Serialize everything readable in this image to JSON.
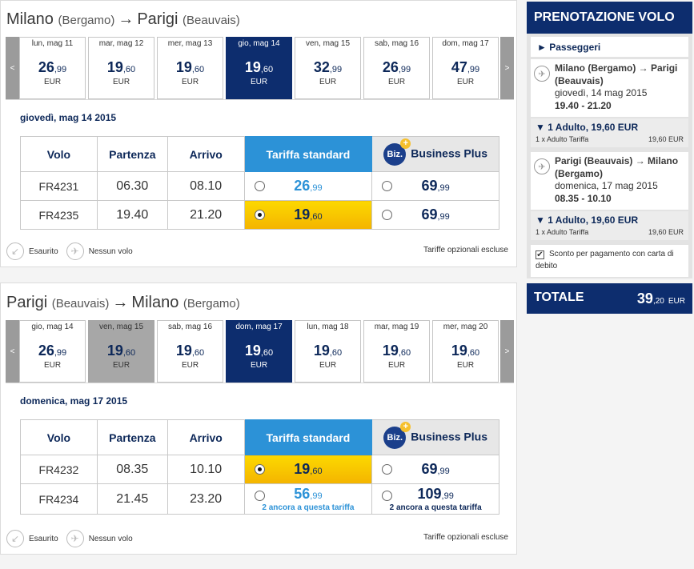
{
  "outbound": {
    "route": {
      "from": "Milano",
      "from_airport": "(Bergamo)",
      "arrow": "→",
      "to": "Parigi",
      "to_airport": "(Beauvais)"
    },
    "nav_prev": "<",
    "nav_next": ">",
    "days": [
      {
        "label": "lun, mag 11",
        "int": "26",
        "dec": ",99",
        "cur": "EUR",
        "state": "normal"
      },
      {
        "label": "mar, mag 12",
        "int": "19",
        "dec": ",60",
        "cur": "EUR",
        "state": "normal"
      },
      {
        "label": "mer, mag 13",
        "int": "19",
        "dec": ",60",
        "cur": "EUR",
        "state": "normal"
      },
      {
        "label": "gio, mag 14",
        "int": "19",
        "dec": ",60",
        "cur": "EUR",
        "state": "selected"
      },
      {
        "label": "ven, mag 15",
        "int": "32",
        "dec": ",99",
        "cur": "EUR",
        "state": "normal"
      },
      {
        "label": "sab, mag 16",
        "int": "26",
        "dec": ",99",
        "cur": "EUR",
        "state": "normal"
      },
      {
        "label": "dom, mag 17",
        "int": "47",
        "dec": ",99",
        "cur": "EUR",
        "state": "normal"
      }
    ],
    "date_title": "giovedì, mag 14 2015",
    "headers": {
      "flight": "Volo",
      "departure": "Partenza",
      "arrival": "Arrivo",
      "standard": "Tariffa standard",
      "biz_logo": "Biz.",
      "business": "Business Plus"
    },
    "flights": [
      {
        "code": "FR4231",
        "dep": "06.30",
        "arr": "08.10",
        "std_int": "26",
        "std_dec": ",99",
        "std_selected": false,
        "biz_int": "69",
        "biz_dec": ",99"
      },
      {
        "code": "FR4235",
        "dep": "19.40",
        "arr": "21.20",
        "std_int": "19",
        "std_dec": ",60",
        "std_selected": true,
        "biz_int": "69",
        "biz_dec": ",99"
      }
    ],
    "legend_soldout": "Esaurito",
    "legend_noflight": "Nessun volo",
    "optional": "Tariffe opzionali escluse"
  },
  "inbound": {
    "route": {
      "from": "Parigi",
      "from_airport": "(Beauvais)",
      "arrow": "→",
      "to": "Milano",
      "to_airport": "(Bergamo)"
    },
    "nav_prev": "<",
    "nav_next": ">",
    "days": [
      {
        "label": "gio, mag 14",
        "int": "26",
        "dec": ",99",
        "cur": "EUR",
        "state": "normal"
      },
      {
        "label": "ven, mag 15",
        "int": "19",
        "dec": ",60",
        "cur": "EUR",
        "state": "grey"
      },
      {
        "label": "sab, mag 16",
        "int": "19",
        "dec": ",60",
        "cur": "EUR",
        "state": "normal"
      },
      {
        "label": "dom, mag 17",
        "int": "19",
        "dec": ",60",
        "cur": "EUR",
        "state": "selected"
      },
      {
        "label": "lun, mag 18",
        "int": "19",
        "dec": ",60",
        "cur": "EUR",
        "state": "normal"
      },
      {
        "label": "mar, mag 19",
        "int": "19",
        "dec": ",60",
        "cur": "EUR",
        "state": "normal"
      },
      {
        "label": "mer, mag 20",
        "int": "19",
        "dec": ",60",
        "cur": "EUR",
        "state": "normal"
      }
    ],
    "date_title": "domenica, mag 17 2015",
    "headers": {
      "flight": "Volo",
      "departure": "Partenza",
      "arrival": "Arrivo",
      "standard": "Tariffa standard",
      "biz_logo": "Biz.",
      "business": "Business Plus"
    },
    "flights": [
      {
        "code": "FR4232",
        "dep": "08.35",
        "arr": "10.10",
        "std_int": "19",
        "std_dec": ",60",
        "std_selected": true,
        "biz_int": "69",
        "biz_dec": ",99"
      },
      {
        "code": "FR4234",
        "dep": "21.45",
        "arr": "23.20",
        "std_int": "56",
        "std_dec": ",99",
        "std_selected": false,
        "std_note": "2 ancora a questa tariffa",
        "biz_int": "109",
        "biz_dec": ",99",
        "biz_note": "2 ancora a questa tariffa"
      }
    ],
    "legend_soldout": "Esaurito",
    "legend_noflight": "Nessun volo",
    "optional": "Tariffe opzionali escluse"
  },
  "summary": {
    "title": "PRENOTAZIONE VOLO",
    "passengers": "► Passeggeri",
    "out_route": "Milano (Bergamo) → Parigi (Beauvais)",
    "out_date": "giovedì, 14 mag 2015",
    "out_time": "19.40 - 21.20",
    "out_adult": "▼ 1 Adulto, 19,60 EUR",
    "out_fare_label": "1 x Adulto Tariffa",
    "out_fare_value": "19,60 EUR",
    "ret_route": "Parigi (Beauvais) → Milano (Bergamo)",
    "ret_date": "domenica, 17 mag 2015",
    "ret_time": "08.35 - 10.10",
    "ret_adult": "▼ 1 Adulto, 19,60 EUR",
    "ret_fare_label": "1 x Adulto Tariffa",
    "ret_fare_value": "19,60 EUR",
    "discount": "Sconto per pagamento con carta di debito",
    "discount_checked": "✔",
    "total_label": "TOTALE",
    "total_int": "39",
    "total_dec": ",20",
    "total_cur": "EUR"
  },
  "colors": {
    "navy": "#0d2d6e",
    "blue": "#2c92d7",
    "yellow": "#f4b400",
    "grey": "#a7a7a7"
  }
}
